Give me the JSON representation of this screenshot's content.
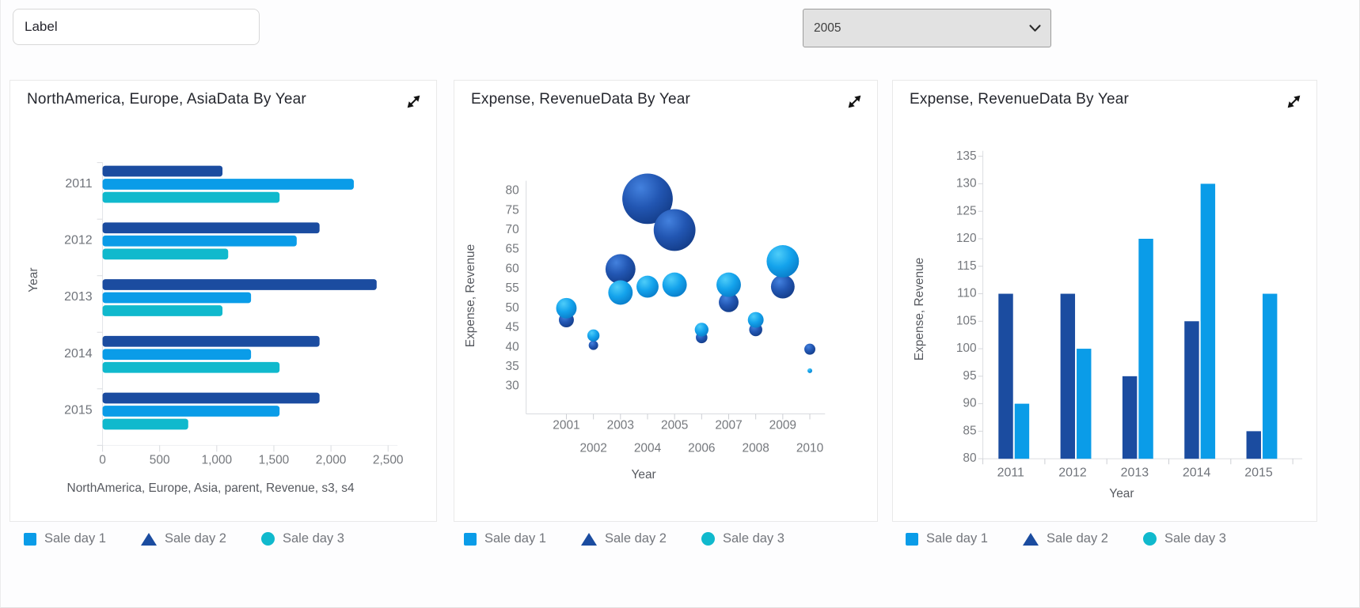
{
  "topbar": {
    "label_input": {
      "value": "Label"
    },
    "year_select": {
      "value": "2005"
    }
  },
  "colors": {
    "series1_light_blue": "#0a9ce8",
    "series2_dark_blue": "#1b4ca0",
    "series3_teal": "#10b9cd",
    "axis_text": "#75787d",
    "title_text": "#25272e",
    "legend_text": "#73767c",
    "card_border": "#e9e9e9"
  },
  "legend": {
    "items": [
      {
        "label": "Sale day 1",
        "shape": "square",
        "color": "#0a9ce8"
      },
      {
        "label": "Sale day 2",
        "shape": "triangle",
        "color": "#1b4ca0"
      },
      {
        "label": "Sale day 3",
        "shape": "circle",
        "color": "#10b9cd"
      }
    ]
  },
  "panels": [
    {
      "title": "NorthAmerica, Europe, AsiaData By Year"
    },
    {
      "title": "Expense, RevenueData By Year"
    },
    {
      "title": "Expense, RevenueData By Year"
    }
  ],
  "chart_data": [
    {
      "type": "bar",
      "orientation": "horizontal",
      "title": "NorthAmerica, Europe, AsiaData By Year",
      "categories": [
        "2011",
        "2012",
        "2013",
        "2014",
        "2015"
      ],
      "series": [
        {
          "name": "Sale day 2",
          "color": "#1b4ca0",
          "values": [
            1050,
            1900,
            2400,
            1900,
            1900
          ]
        },
        {
          "name": "Sale day 1",
          "color": "#0a9ce8",
          "values": [
            2200,
            1700,
            1300,
            1300,
            1550
          ]
        },
        {
          "name": "Sale day 3",
          "color": "#10b9cd",
          "values": [
            1550,
            1100,
            1050,
            1550,
            750
          ]
        }
      ],
      "xlabel": "NorthAmerica, Europe, Asia, parent, Revenue, s3, s4",
      "ylabel": "Year",
      "xlim": [
        0,
        2500
      ],
      "xticks": [
        0,
        500,
        1000,
        1500,
        2000,
        2500
      ],
      "grid": false
    },
    {
      "type": "scatter",
      "title": "Expense, RevenueData By Year",
      "xlabel": "Year",
      "ylabel": "Expense, Revenue",
      "xticks": [
        2001,
        2002,
        2003,
        2004,
        2005,
        2006,
        2007,
        2008,
        2009,
        2010
      ],
      "yticks": [
        80,
        75,
        70,
        65,
        60,
        55,
        50,
        45,
        40,
        35,
        30
      ],
      "ylim": [
        30,
        80
      ],
      "grid": false,
      "series": [
        {
          "name": "Sale day 2",
          "color": "#1b4ca0",
          "points": [
            {
              "x": 2001,
              "y": 47,
              "r": 9.5
            },
            {
              "x": 2002,
              "y": 40.5,
              "r": 6
            },
            {
              "x": 2003,
              "y": 60,
              "r": 19
            },
            {
              "x": 2004,
              "y": 78,
              "r": 32
            },
            {
              "x": 2005,
              "y": 70,
              "r": 26.5
            },
            {
              "x": 2006,
              "y": 42.5,
              "r": 7.3
            },
            {
              "x": 2007,
              "y": 51.5,
              "r": 12.5
            },
            {
              "x": 2008,
              "y": 44.5,
              "r": 8.3
            },
            {
              "x": 2009,
              "y": 55.5,
              "r": 15
            },
            {
              "x": 2010,
              "y": 39.5,
              "r": 7
            }
          ]
        },
        {
          "name": "Sale day 1",
          "color": "#0a9ce8",
          "points": [
            {
              "x": 2001,
              "y": 50,
              "r": 13
            },
            {
              "x": 2002,
              "y": 43,
              "r": 7.7
            },
            {
              "x": 2003,
              "y": 54,
              "r": 15.5
            },
            {
              "x": 2004,
              "y": 55.5,
              "r": 14
            },
            {
              "x": 2005,
              "y": 56,
              "r": 15.5
            },
            {
              "x": 2006,
              "y": 44.5,
              "r": 8.7
            },
            {
              "x": 2007,
              "y": 56,
              "r": 15.5
            },
            {
              "x": 2008,
              "y": 47,
              "r": 10
            },
            {
              "x": 2009,
              "y": 62,
              "r": 20.5
            },
            {
              "x": 2010,
              "y": 34,
              "r": 3
            }
          ]
        }
      ]
    },
    {
      "type": "bar",
      "orientation": "vertical",
      "title": "Expense, RevenueData By Year",
      "categories": [
        "2011",
        "2012",
        "2013",
        "2014",
        "2015"
      ],
      "series": [
        {
          "name": "Sale day 2",
          "color": "#1b4ca0",
          "values": [
            110,
            110,
            95,
            105,
            85
          ]
        },
        {
          "name": "Sale day 1",
          "color": "#0a9ce8",
          "values": [
            90,
            100,
            120,
            130,
            110
          ]
        }
      ],
      "xlabel": "Year",
      "ylabel": "Expense, Revenue",
      "ylim": [
        80,
        135
      ],
      "yticks": [
        135,
        130,
        125,
        120,
        115,
        110,
        105,
        100,
        95,
        90,
        85,
        80
      ],
      "grid": false
    }
  ]
}
